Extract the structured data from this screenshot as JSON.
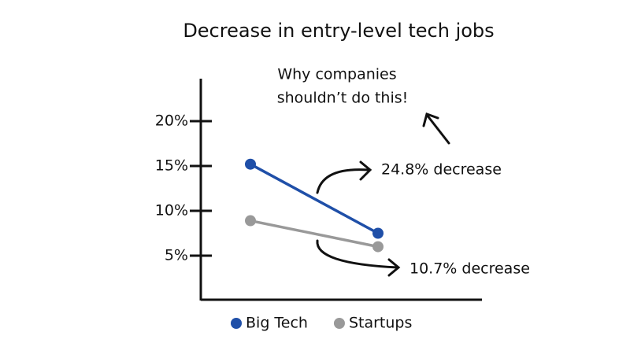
{
  "chart_data": {
    "type": "line",
    "title": "Decrease in entry-level tech jobs",
    "categories": [
      null,
      null
    ],
    "series": [
      {
        "name": "Big Tech",
        "color": "#1f4fa8",
        "values": [
          15.2,
          7.5
        ]
      },
      {
        "name": "Startups",
        "color": "#999999",
        "values": [
          8.9,
          6.0
        ]
      }
    ],
    "ylim": [
      0,
      25
    ],
    "yticks": [
      {
        "value": 5,
        "label": "5%"
      },
      {
        "value": 10,
        "label": "10%"
      },
      {
        "value": 15,
        "label": "15%"
      },
      {
        "value": 20,
        "label": "20%"
      }
    ],
    "annotations": [
      "Why companies",
      "shouldn’t do this!",
      "24.8% decrease",
      "10.7% decrease"
    ],
    "legend": "bottom"
  }
}
